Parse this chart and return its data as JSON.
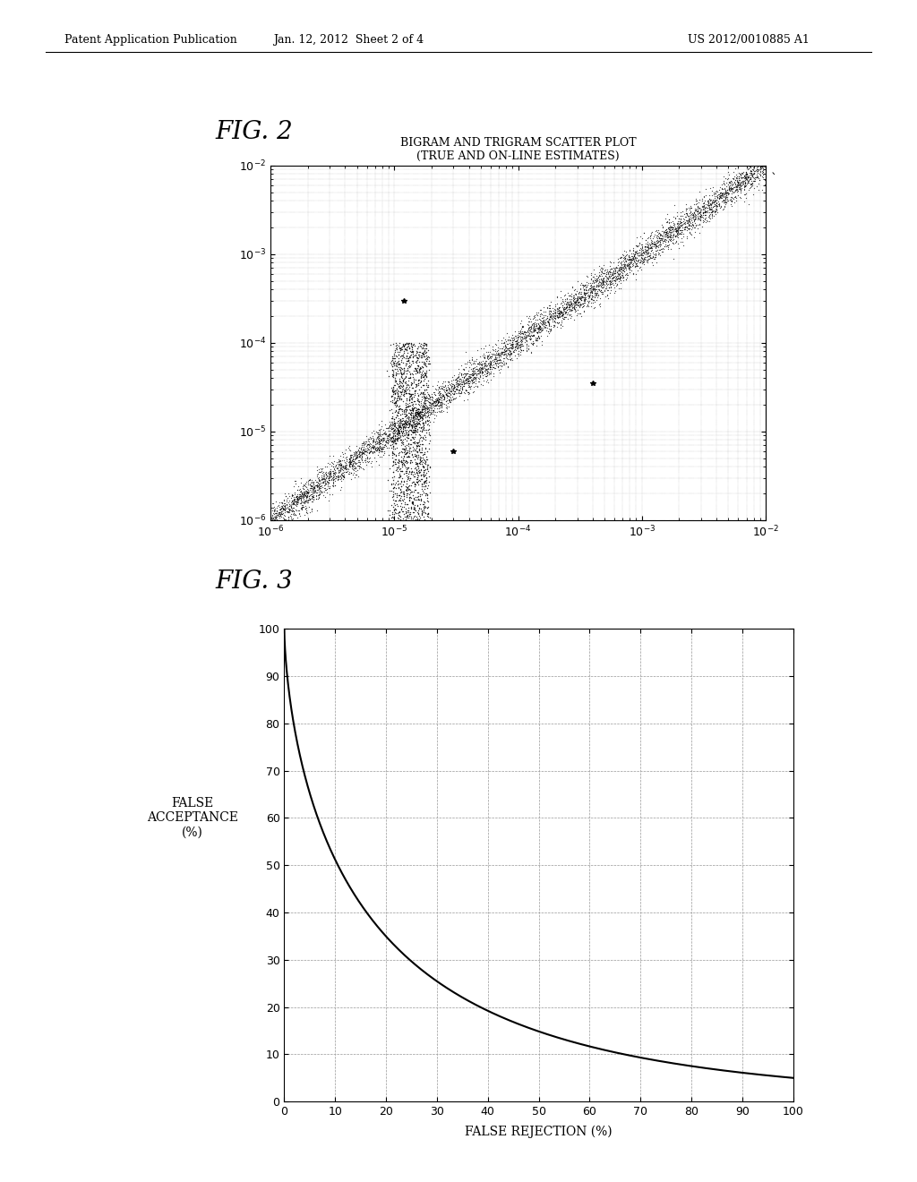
{
  "fig2_title_line1": "BIGRAM AND TRIGRAM SCATTER PLOT",
  "fig2_title_line2": "(TRUE AND ON-LINE ESTIMATES)",
  "fig2_xlim": [
    1e-06,
    0.01
  ],
  "fig2_ylim": [
    1e-06,
    0.01
  ],
  "fig2_xticks": [
    1e-06,
    1e-05,
    0.0001,
    0.001,
    0.01
  ],
  "fig2_yticks": [
    1e-06,
    1e-05,
    0.0001,
    0.001,
    0.01
  ],
  "fig3_xlabel": "FALSE REJECTION (%)",
  "fig3_ylabel_line1": "FALSE",
  "fig3_ylabel_line2": "ACCEPTANCE",
  "fig3_ylabel_line3": "(%)",
  "fig3_xlim": [
    0,
    100
  ],
  "fig3_ylim": [
    0,
    100
  ],
  "fig3_xticks": [
    0,
    10,
    20,
    30,
    40,
    50,
    60,
    70,
    80,
    90,
    100
  ],
  "fig3_yticks": [
    0,
    10,
    20,
    30,
    40,
    50,
    60,
    70,
    80,
    90,
    100
  ],
  "header_left": "Patent Application Publication",
  "header_mid": "Jan. 12, 2012  Sheet 2 of 4",
  "header_right": "US 2012/0010885 A1",
  "fig2_label": "FIG. 2",
  "fig3_label": "FIG. 3",
  "bg_color": "#ffffff"
}
